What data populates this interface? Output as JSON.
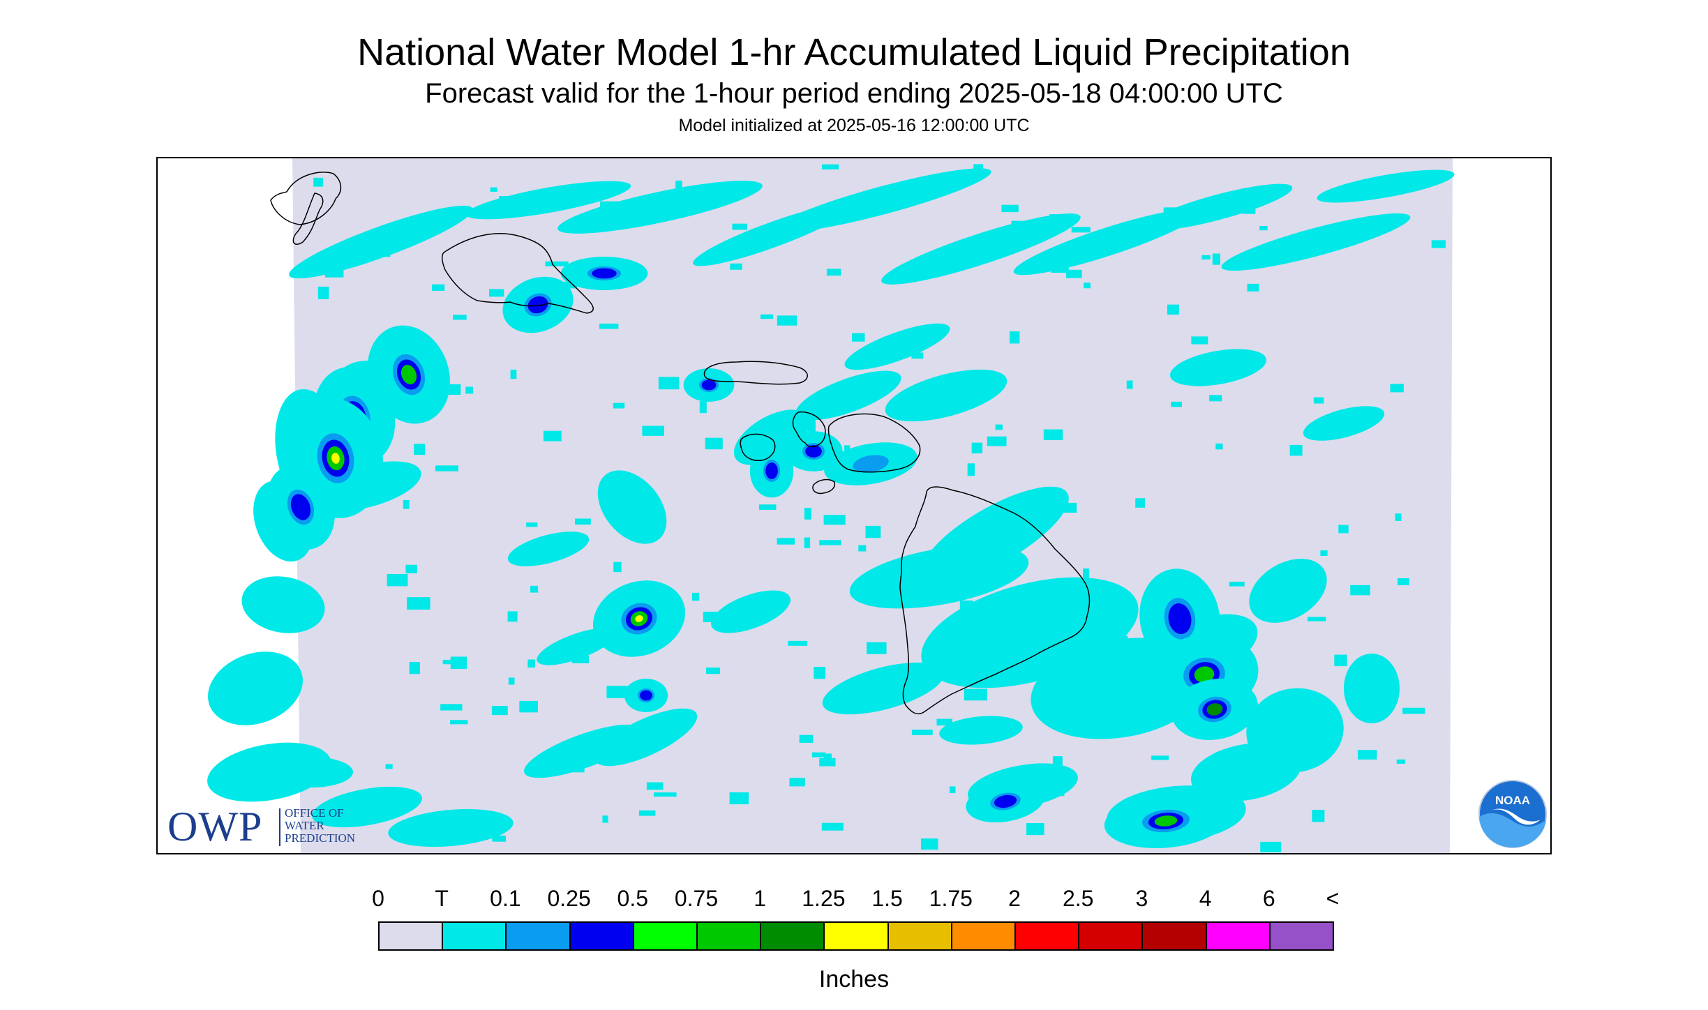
{
  "title": "National Water Model 1-hr Accumulated Liquid Precipitation",
  "subtitle": "Forecast valid for the 1-hour period ending 2025-05-18 04:00:00 UTC",
  "init_line": "Model initialized at 2025-05-16 12:00:00 UTC",
  "logo_owp": {
    "big": "OWP",
    "line1": "OFFICE OF",
    "line2": "WATER",
    "line3": "PREDICTION"
  },
  "logo_noaa": "NOAA",
  "legend": {
    "labels": [
      "0",
      "T",
      "0.1",
      "0.25",
      "0.5",
      "0.75",
      "1",
      "1.25",
      "1.5",
      "1.75",
      "2",
      "2.5",
      "3",
      "4",
      "6",
      "<"
    ],
    "colors": [
      "#dcdcec",
      "#00e8e8",
      "#0a9cf0",
      "#0000f0",
      "#00ff00",
      "#00c800",
      "#008c00",
      "#ffff00",
      "#e8be00",
      "#ff8c00",
      "#ff0000",
      "#d40000",
      "#b40000",
      "#ff00ff",
      "#9650c8"
    ],
    "units": "Inches"
  },
  "map_colors": {
    "background": "#dcdcec",
    "coast": "#000000"
  }
}
